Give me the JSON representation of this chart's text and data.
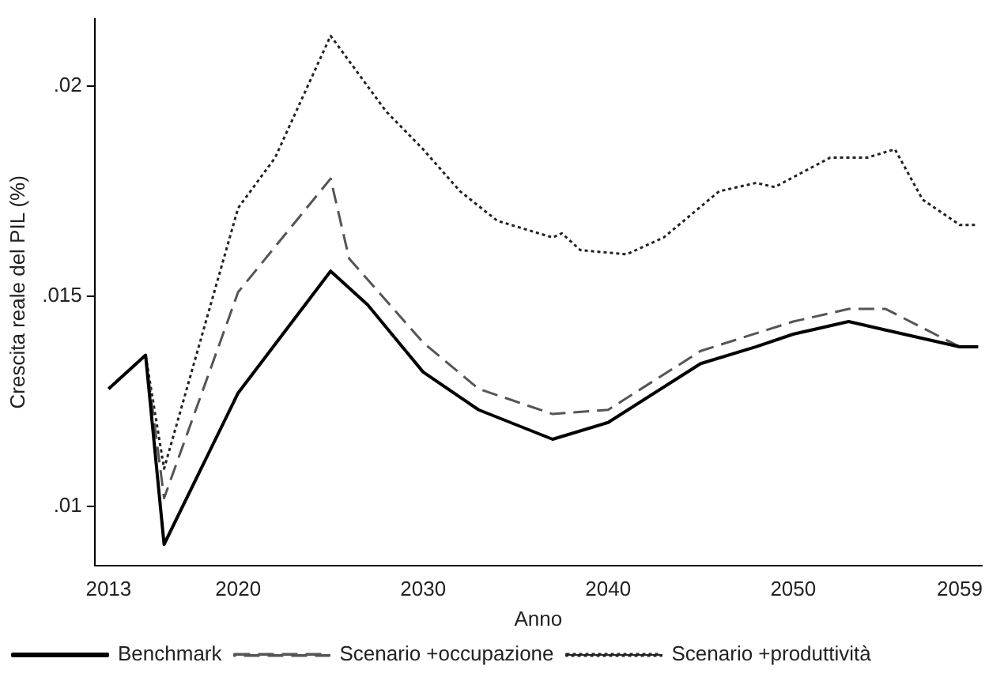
{
  "chart_data": {
    "type": "line",
    "xlabel": "Anno",
    "ylabel": "Crescita reale del PIL (%)",
    "xlim": [
      2012.25,
      2060.2
    ],
    "xticks": [
      2013,
      2020,
      2030,
      2040,
      2050,
      2059
    ],
    "ylim": [
      0.0086,
      0.0216
    ],
    "yticks": [
      {
        "value": 0.01,
        "label": ".01"
      },
      {
        "value": 0.015,
        "label": ".015"
      },
      {
        "value": 0.02,
        "label": ".02"
      }
    ],
    "grid": false,
    "legend": "bottom",
    "marker": "none",
    "series": [
      {
        "name": "Benchmark",
        "color": "#000000",
        "line_style": "solid",
        "x": [
          2013,
          2015,
          2016,
          2020,
          2025,
          2027,
          2030,
          2033,
          2037,
          2040,
          2045,
          2048,
          2050,
          2053,
          2055,
          2059,
          2060
        ],
        "values": [
          0.0128,
          0.0136,
          0.0091,
          0.0127,
          0.0156,
          0.0148,
          0.0132,
          0.0123,
          0.0116,
          0.012,
          0.0134,
          0.0138,
          0.0141,
          0.0144,
          0.0142,
          0.0138,
          0.0138
        ]
      },
      {
        "name": "Scenario +occupazione",
        "color": "#555555",
        "line_style": "dashed",
        "x": [
          2013,
          2015,
          2016,
          2020,
          2025,
          2026,
          2030,
          2033,
          2037,
          2040,
          2045,
          2050,
          2053,
          2055,
          2059,
          2060
        ],
        "values": [
          0.0128,
          0.0136,
          0.0102,
          0.0151,
          0.0178,
          0.0159,
          0.0139,
          0.0128,
          0.0122,
          0.0123,
          0.0137,
          0.0144,
          0.0147,
          0.0147,
          0.0138,
          0.0138
        ]
      },
      {
        "name": "Scenario +produttività",
        "color": "#222222",
        "line_style": "dotted",
        "x": [
          2013,
          2015,
          2016,
          2020,
          2022,
          2025,
          2028,
          2030,
          2032,
          2034,
          2037,
          2037.5,
          2038.5,
          2041,
          2043,
          2046,
          2048,
          2049,
          2052,
          2054,
          2055.5,
          2057,
          2059,
          2060
        ],
        "values": [
          0.0128,
          0.0136,
          0.0109,
          0.0171,
          0.0183,
          0.0212,
          0.0194,
          0.0185,
          0.0175,
          0.0168,
          0.0164,
          0.0165,
          0.0161,
          0.016,
          0.0164,
          0.0175,
          0.0177,
          0.0176,
          0.0183,
          0.0183,
          0.0185,
          0.0173,
          0.0167,
          0.0167
        ]
      }
    ]
  }
}
